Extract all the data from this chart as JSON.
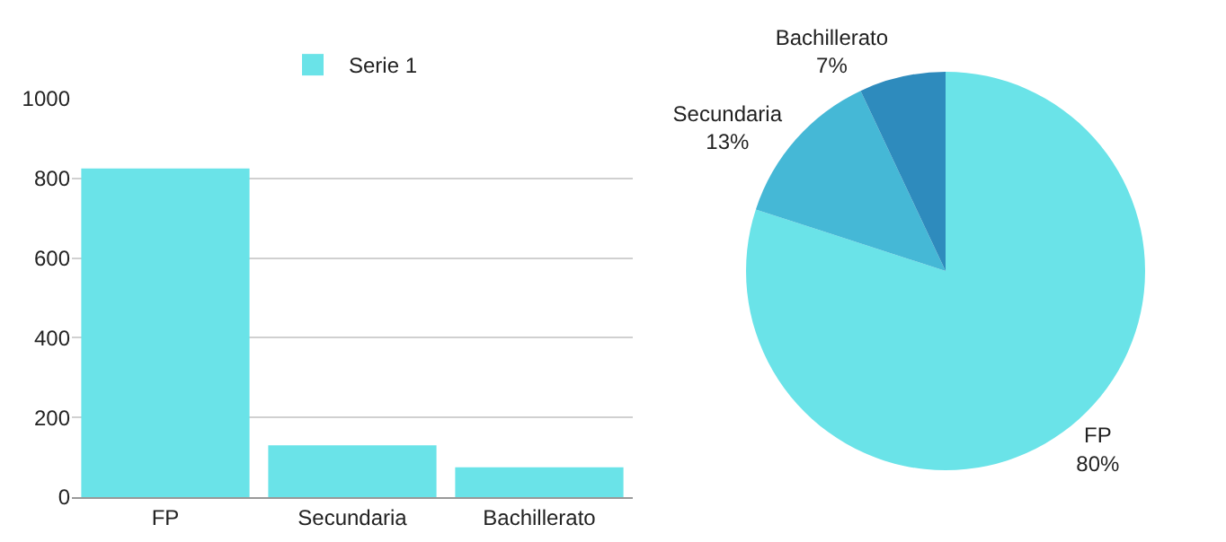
{
  "chart_data": [
    {
      "type": "bar",
      "categories": [
        "FP",
        "Secundaria",
        "Bachillerato"
      ],
      "series": [
        {
          "name": "Serie 1",
          "color": "#6ae3e8",
          "values": [
            825,
            130,
            75
          ]
        }
      ],
      "ylim": [
        0,
        1000
      ],
      "yticks": [
        0,
        200,
        400,
        600,
        800,
        1000
      ],
      "grid": "y",
      "legend": "top"
    },
    {
      "type": "pie",
      "categories": [
        "FP",
        "Secundaria",
        "Bachillerato"
      ],
      "values": [
        80,
        13,
        7
      ],
      "value_labels": [
        "80%",
        "13%",
        "7%"
      ],
      "colors": [
        "#6ae3e8",
        "#45b8d6",
        "#2e8bbd"
      ],
      "legend": false
    }
  ]
}
